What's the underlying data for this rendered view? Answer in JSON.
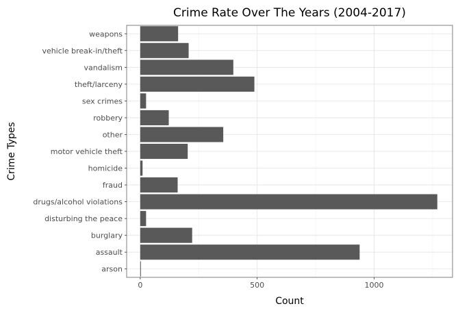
{
  "chart_data": {
    "type": "bar",
    "orientation": "horizontal",
    "title": "Crime Rate Over The Years (2004-2017)",
    "xlabel": "Count",
    "ylabel": "Crime Types",
    "categories": [
      "arson",
      "assault",
      "burglary",
      "disturbing the peace",
      "drugs/alcohol violations",
      "fraud",
      "homicide",
      "motor vehicle theft",
      "other",
      "robbery",
      "sex crimes",
      "theft/larceny",
      "vandalism",
      "vehicle break-in/theft",
      "weapons"
    ],
    "values": [
      3,
      938,
      222,
      25,
      1270,
      160,
      10,
      203,
      355,
      122,
      25,
      488,
      398,
      207,
      162
    ],
    "xlim": [
      -58,
      1335
    ],
    "xticks": [
      0,
      500,
      1000
    ],
    "grid": true,
    "legend": "none",
    "colors": {
      "bar": "#595959",
      "grid_major": "#e3e3e3",
      "grid_minor": "#f2f2f2",
      "panel_border": "#7f7f7f",
      "text": "#4d4d4d"
    }
  }
}
